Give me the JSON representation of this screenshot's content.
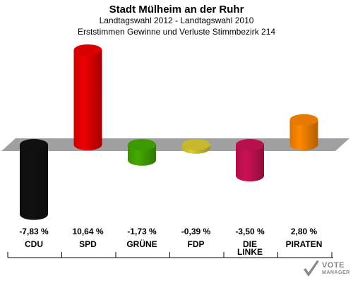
{
  "header": {
    "title": "Stadt Mülheim an der Ruhr",
    "subtitle1": "Landtagswahl 2012 - Landtagswahl 2010",
    "subtitle2": "Erststimmen Gewinne und Verluste Stimmbezirk 214"
  },
  "chart_data": {
    "type": "bar",
    "title": "Stadt Mülheim an der Ruhr",
    "categories": [
      "CDU",
      "SPD",
      "GRÜNE",
      "FDP",
      "DIE LINKE",
      "PIRATEN"
    ],
    "values": [
      -7.83,
      10.64,
      -1.73,
      -0.39,
      -3.5,
      2.8
    ],
    "value_labels": [
      "-7,83 %",
      "10,64 %",
      "-1,73 %",
      "-0,39 %",
      "-3,50 %",
      "2,80 %"
    ],
    "category_labels": [
      [
        "CDU"
      ],
      [
        "SPD"
      ],
      [
        "GRÜNE"
      ],
      [
        "FDP"
      ],
      [
        "DIE",
        "LINKE"
      ],
      [
        "PIRATEN"
      ]
    ],
    "colors": [
      "#111111",
      "#ee0000",
      "#44aa00",
      "#ddcc33",
      "#cc1155",
      "#ff8800"
    ],
    "ylim": [
      -10,
      12
    ],
    "grid": false,
    "legend": "none"
  },
  "logo": {
    "line1": "VOTE",
    "line2": "MANAGER"
  }
}
